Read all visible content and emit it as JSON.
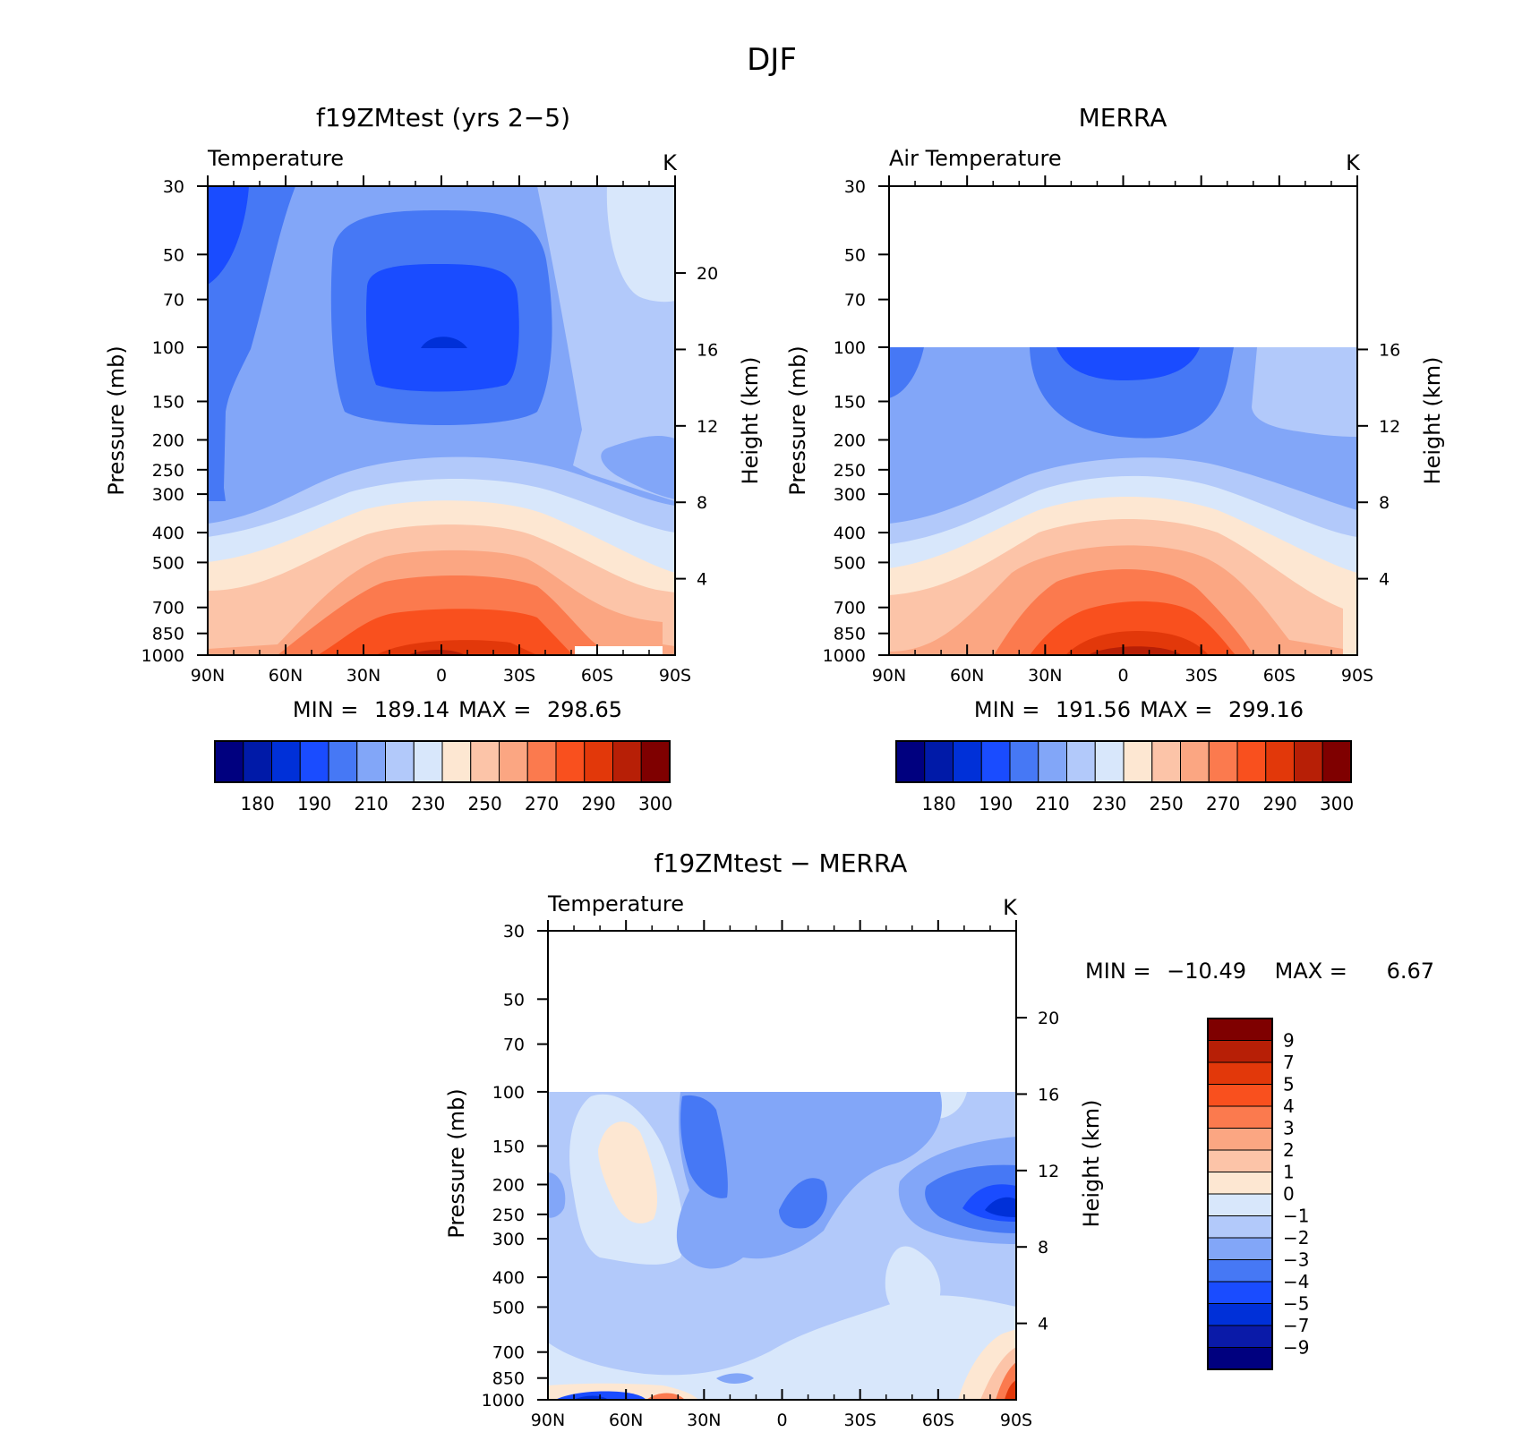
{
  "figure_title": "DJF",
  "chart_data": [
    {
      "type": "heatmap",
      "title": "f19ZMtest (yrs 2−5)",
      "field": "Temperature",
      "units": "K",
      "ylabel": "Pressure (mb)",
      "ylabel_right": "Height (km)",
      "x_ticks": [
        "90N",
        "60N",
        "30N",
        "0",
        "30S",
        "60S",
        "90S"
      ],
      "y_ticks": [
        "30",
        "50",
        "70",
        "100",
        "150",
        "200",
        "250",
        "300",
        "400",
        "500",
        "700",
        "850",
        "1000"
      ],
      "right_ticks": [
        "20",
        "16",
        "12",
        "8",
        "4"
      ],
      "stats": {
        "min_label": "MIN =",
        "min": "189.14",
        "max_label": "MAX =",
        "max": "298.65"
      },
      "colorbar": {
        "colors": [
          "#00007f",
          "#001aa8",
          "#0030d8",
          "#1a4cff",
          "#4678f5",
          "#82a6f8",
          "#b2c9fa",
          "#d8e7fb",
          "#fde7d2",
          "#fcc4a8",
          "#fba682",
          "#fb7a4e",
          "#f9501e",
          "#e2380a",
          "#b71f06",
          "#7f0000"
        ],
        "labels": [
          "180",
          "190",
          "210",
          "230",
          "250",
          "270",
          "290",
          "300"
        ]
      }
    },
    {
      "type": "heatmap",
      "title": "MERRA",
      "field": "Air Temperature",
      "units": "K",
      "ylabel": "Pressure (mb)",
      "ylabel_right": "Height (km)",
      "x_ticks": [
        "90N",
        "60N",
        "30N",
        "0",
        "30S",
        "60S",
        "90S"
      ],
      "y_ticks": [
        "30",
        "50",
        "70",
        "100",
        "150",
        "200",
        "250",
        "300",
        "400",
        "500",
        "700",
        "850",
        "1000"
      ],
      "right_ticks": [
        "16",
        "12",
        "8",
        "4"
      ],
      "stats": {
        "min_label": "MIN =",
        "min": "191.56",
        "max_label": "MAX =",
        "max": "299.16"
      },
      "colorbar": {
        "colors": [
          "#00007f",
          "#001aa8",
          "#0030d8",
          "#1a4cff",
          "#4678f5",
          "#82a6f8",
          "#b2c9fa",
          "#d8e7fb",
          "#fde7d2",
          "#fcc4a8",
          "#fba682",
          "#fb7a4e",
          "#f9501e",
          "#e2380a",
          "#b71f06",
          "#7f0000"
        ],
        "labels": [
          "180",
          "190",
          "210",
          "230",
          "250",
          "270",
          "290",
          "300"
        ]
      }
    },
    {
      "type": "heatmap",
      "title": "f19ZMtest − MERRA",
      "field": "Temperature",
      "units": "K",
      "ylabel": "Pressure (mb)",
      "ylabel_right": "Height (km)",
      "x_ticks": [
        "90N",
        "60N",
        "30N",
        "0",
        "30S",
        "60S",
        "90S"
      ],
      "y_ticks": [
        "30",
        "50",
        "70",
        "100",
        "150",
        "200",
        "250",
        "300",
        "400",
        "500",
        "700",
        "850",
        "1000"
      ],
      "right_ticks": [
        "20",
        "16",
        "12",
        "8",
        "4"
      ],
      "stats": {
        "min_label": "MIN =",
        "min": "−10.49",
        "max_label": "MAX =",
        "max": "6.67"
      },
      "colorbar": {
        "colors": [
          "#00007f",
          "#0a1aa8",
          "#0030d8",
          "#1a4cff",
          "#4678f5",
          "#82a6f8",
          "#b2c9fa",
          "#d8e7fb",
          "#fde7d2",
          "#fcc4a8",
          "#fba682",
          "#fb7a4e",
          "#f9501e",
          "#e2380a",
          "#b71f06",
          "#7f0000"
        ],
        "labels": [
          "9",
          "7",
          "5",
          "4",
          "3",
          "2",
          "1",
          "0",
          "−1",
          "−2",
          "−3",
          "−4",
          "−5",
          "−7",
          "−9"
        ]
      }
    }
  ]
}
